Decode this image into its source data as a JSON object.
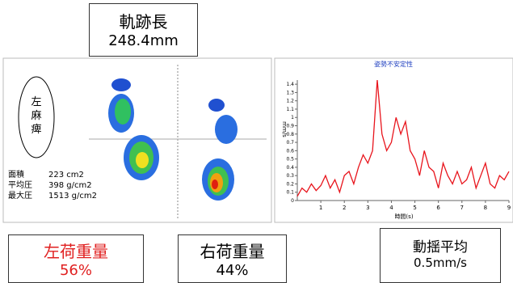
{
  "header": {
    "title": "軌跡長",
    "value": "248.4mm"
  },
  "pressure_map": {
    "condition": [
      "左",
      "麻",
      "痺"
    ],
    "stats": [
      {
        "label": "面積",
        "value": "223 cm2"
      },
      {
        "label": "平均圧",
        "value": "398 g/cm2"
      },
      {
        "label": "最大圧",
        "value": "1513 g/cm2"
      }
    ]
  },
  "chart_data": {
    "type": "line",
    "title": "姿勢不安定性",
    "ylabel": "mm/s",
    "xlabel": "時間(s)",
    "color": "#e8141c",
    "x": [
      0,
      0.2,
      0.4,
      0.6,
      0.8,
      1,
      1.2,
      1.4,
      1.6,
      1.8,
      2,
      2.2,
      2.4,
      2.6,
      2.8,
      3,
      3.2,
      3.4,
      3.6,
      3.8,
      4,
      4.2,
      4.4,
      4.6,
      4.8,
      5,
      5.2,
      5.4,
      5.6,
      5.8,
      6,
      6.2,
      6.4,
      6.6,
      6.8,
      7,
      7.2,
      7.4,
      7.6,
      7.8,
      8,
      8.2,
      8.4,
      8.6,
      8.8,
      9
    ],
    "values": [
      0.05,
      0.15,
      0.1,
      0.2,
      0.12,
      0.18,
      0.3,
      0.15,
      0.25,
      0.1,
      0.3,
      0.35,
      0.2,
      0.4,
      0.55,
      0.45,
      0.6,
      1.45,
      0.8,
      0.6,
      0.7,
      1.0,
      0.8,
      0.95,
      0.6,
      0.5,
      0.3,
      0.6,
      0.4,
      0.35,
      0.15,
      0.45,
      0.3,
      0.2,
      0.35,
      0.2,
      0.25,
      0.4,
      0.15,
      0.3,
      0.45,
      0.2,
      0.15,
      0.3,
      0.25,
      0.35
    ],
    "xlim": [
      0,
      9
    ],
    "ylim": [
      0,
      1.45
    ],
    "xticks": [
      1,
      2,
      3,
      4,
      5,
      6,
      7,
      8,
      9
    ],
    "yticks": [
      0,
      0.1,
      0.2,
      0.3,
      0.4,
      0.5,
      0.6,
      0.7,
      0.8,
      0.9,
      1,
      1.1,
      1.2,
      1.3,
      1.4
    ]
  },
  "footer": [
    {
      "label": "左荷重量",
      "value": "56%"
    },
    {
      "label": "右荷重量",
      "value": "44%"
    },
    {
      "label": "動揺平均",
      "value": "0.5mm/s"
    }
  ]
}
